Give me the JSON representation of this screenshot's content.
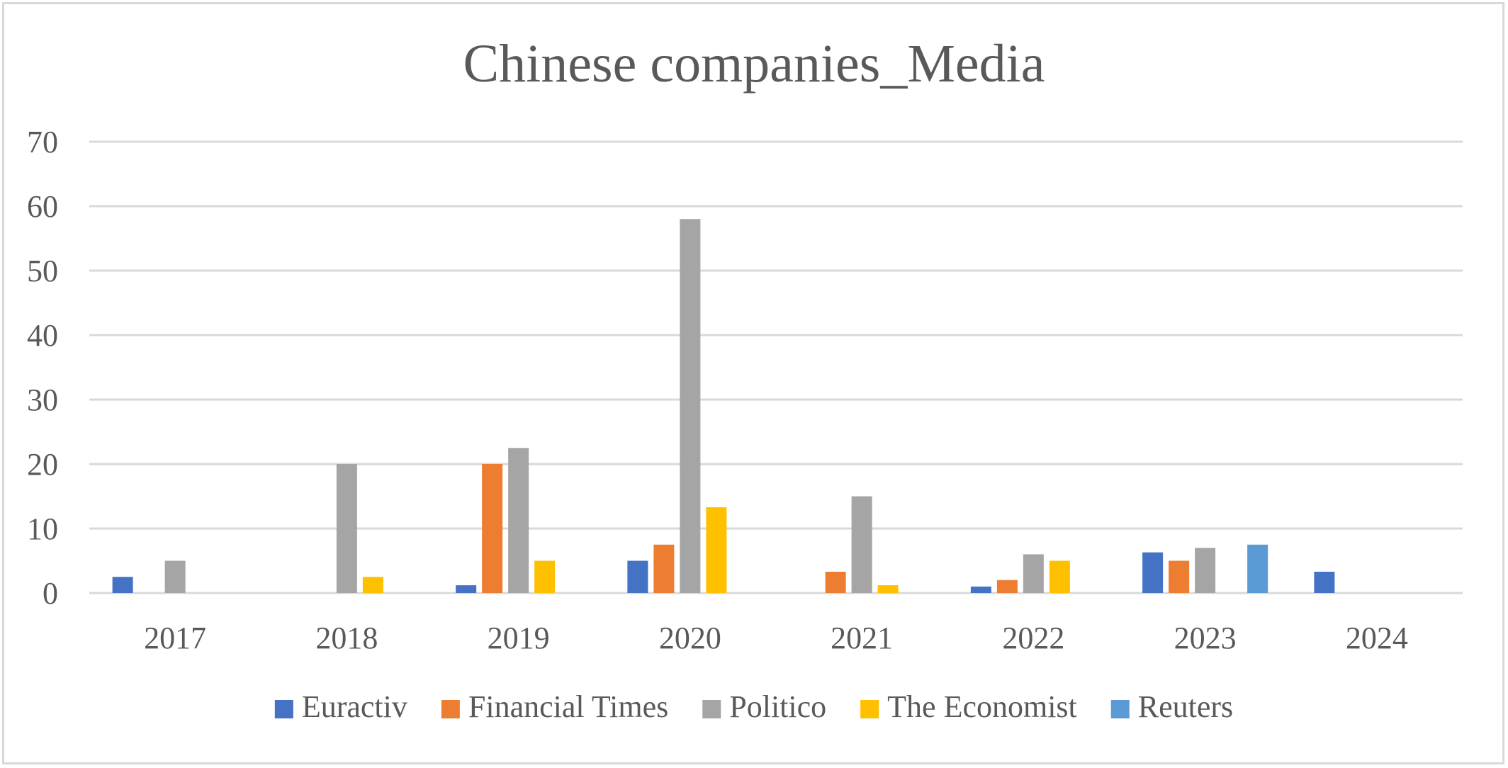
{
  "chart_data": {
    "type": "bar",
    "title": "Chinese companies_Media",
    "xlabel": "",
    "ylabel": "",
    "categories": [
      "2017",
      "2018",
      "2019",
      "2020",
      "2021",
      "2022",
      "2023",
      "2024"
    ],
    "ylim": [
      0,
      70
    ],
    "yticks": [
      0,
      10,
      20,
      30,
      40,
      50,
      60,
      70
    ],
    "grid": true,
    "legend_position": "bottom",
    "series": [
      {
        "name": "Euractiv",
        "color": "#4472C4",
        "values": [
          2.5,
          0,
          1.2,
          5,
          0,
          1,
          6.3,
          3.3
        ]
      },
      {
        "name": "Financial Times",
        "color": "#ED7D31",
        "values": [
          0,
          0,
          20,
          7.5,
          3.3,
          2,
          5,
          0
        ]
      },
      {
        "name": "Politico",
        "color": "#A5A5A5",
        "values": [
          5,
          20,
          22.5,
          58,
          15,
          6,
          7,
          0
        ]
      },
      {
        "name": "The Economist",
        "color": "#FFC000",
        "values": [
          0,
          2.5,
          5,
          13.3,
          1.2,
          5,
          0,
          0
        ]
      },
      {
        "name": "Reuters",
        "color": "#5B9BD5",
        "values": [
          0,
          0,
          0,
          0,
          0,
          0,
          7.5,
          0
        ]
      }
    ]
  }
}
